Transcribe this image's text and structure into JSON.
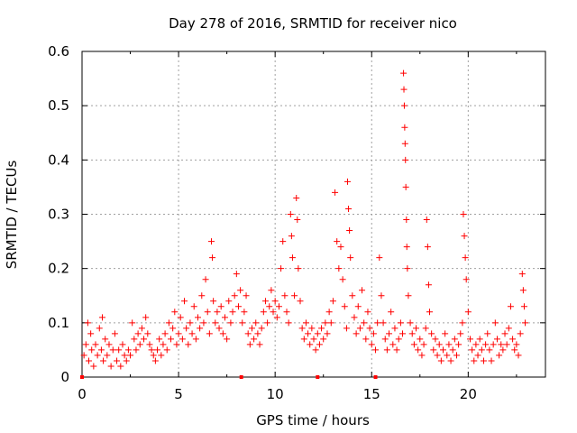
{
  "chart_data": {
    "type": "scatter",
    "title": "Day 278 of 2016, SRMTID for receiver nico",
    "xlabel": "GPS time / hours",
    "ylabel": "SRMTID / TECUs",
    "xlim": [
      0,
      24
    ],
    "ylim": [
      0,
      0.6
    ],
    "x_ticks": [
      0,
      5,
      10,
      15,
      20
    ],
    "y_ticks": [
      0,
      0.1,
      0.2,
      0.3,
      0.4,
      0.5,
      0.6
    ],
    "y_tick_labels": [
      "0",
      "0.1",
      "0.2",
      "0.3",
      "0.4",
      "0.5",
      "0.6"
    ],
    "grid": true,
    "marker": "+",
    "series": [
      {
        "name": "SRMTID",
        "color": "#ff0000",
        "points": [
          [
            0.1,
            0.04
          ],
          [
            0.2,
            0.06
          ],
          [
            0.3,
            0.1
          ],
          [
            0.35,
            0.03
          ],
          [
            0.45,
            0.08
          ],
          [
            0.5,
            0.05
          ],
          [
            0.6,
            0.02
          ],
          [
            0.7,
            0.06
          ],
          [
            0.8,
            0.04
          ],
          [
            0.9,
            0.09
          ],
          [
            1.0,
            0.05
          ],
          [
            1.05,
            0.11
          ],
          [
            1.1,
            0.03
          ],
          [
            1.2,
            0.07
          ],
          [
            1.3,
            0.04
          ],
          [
            1.4,
            0.06
          ],
          [
            1.5,
            0.02
          ],
          [
            1.6,
            0.05
          ],
          [
            1.7,
            0.08
          ],
          [
            1.8,
            0.03
          ],
          [
            1.9,
            0.05
          ],
          [
            2.0,
            0.02
          ],
          [
            2.1,
            0.06
          ],
          [
            2.2,
            0.04
          ],
          [
            2.3,
            0.03
          ],
          [
            2.4,
            0.05
          ],
          [
            2.5,
            0.04
          ],
          [
            2.6,
            0.1
          ],
          [
            2.7,
            0.07
          ],
          [
            2.8,
            0.05
          ],
          [
            2.9,
            0.08
          ],
          [
            3.0,
            0.06
          ],
          [
            3.1,
            0.09
          ],
          [
            3.2,
            0.07
          ],
          [
            3.3,
            0.11
          ],
          [
            3.4,
            0.08
          ],
          [
            3.5,
            0.06
          ],
          [
            3.6,
            0.05
          ],
          [
            3.7,
            0.04
          ],
          [
            3.8,
            0.03
          ],
          [
            3.9,
            0.05
          ],
          [
            4.0,
            0.07
          ],
          [
            4.1,
            0.04
          ],
          [
            4.2,
            0.06
          ],
          [
            4.3,
            0.08
          ],
          [
            4.4,
            0.05
          ],
          [
            4.5,
            0.1
          ],
          [
            4.6,
            0.07
          ],
          [
            4.7,
            0.09
          ],
          [
            4.8,
            0.12
          ],
          [
            4.9,
            0.06
          ],
          [
            5.0,
            0.08
          ],
          [
            5.1,
            0.11
          ],
          [
            5.2,
            0.07
          ],
          [
            5.3,
            0.14
          ],
          [
            5.4,
            0.09
          ],
          [
            5.5,
            0.06
          ],
          [
            5.6,
            0.1
          ],
          [
            5.7,
            0.08
          ],
          [
            5.8,
            0.13
          ],
          [
            5.9,
            0.07
          ],
          [
            6.0,
            0.11
          ],
          [
            6.1,
            0.09
          ],
          [
            6.2,
            0.15
          ],
          [
            6.3,
            0.1
          ],
          [
            6.4,
            0.18
          ],
          [
            6.5,
            0.12
          ],
          [
            6.6,
            0.08
          ],
          [
            6.7,
            0.25
          ],
          [
            6.75,
            0.22
          ],
          [
            6.8,
            0.14
          ],
          [
            6.9,
            0.1
          ],
          [
            7.0,
            0.12
          ],
          [
            7.1,
            0.09
          ],
          [
            7.2,
            0.13
          ],
          [
            7.3,
            0.08
          ],
          [
            7.4,
            0.11
          ],
          [
            7.5,
            0.07
          ],
          [
            7.6,
            0.14
          ],
          [
            7.7,
            0.1
          ],
          [
            7.8,
            0.12
          ],
          [
            7.9,
            0.15
          ],
          [
            8.0,
            0.19
          ],
          [
            8.1,
            0.13
          ],
          [
            8.2,
            0.16
          ],
          [
            8.3,
            0.1
          ],
          [
            8.4,
            0.12
          ],
          [
            8.5,
            0.15
          ],
          [
            8.6,
            0.08
          ],
          [
            8.7,
            0.06
          ],
          [
            8.8,
            0.09
          ],
          [
            8.9,
            0.07
          ],
          [
            9.0,
            0.1
          ],
          [
            9.1,
            0.08
          ],
          [
            9.2,
            0.06
          ],
          [
            9.3,
            0.09
          ],
          [
            9.4,
            0.12
          ],
          [
            9.5,
            0.14
          ],
          [
            9.6,
            0.1
          ],
          [
            9.7,
            0.13
          ],
          [
            9.8,
            0.16
          ],
          [
            9.9,
            0.12
          ],
          [
            10.0,
            0.14
          ],
          [
            10.1,
            0.11
          ],
          [
            10.2,
            0.13
          ],
          [
            10.3,
            0.2
          ],
          [
            10.4,
            0.25
          ],
          [
            10.5,
            0.15
          ],
          [
            10.6,
            0.12
          ],
          [
            10.7,
            0.1
          ],
          [
            10.8,
            0.3
          ],
          [
            10.85,
            0.26
          ],
          [
            10.9,
            0.22
          ],
          [
            11.0,
            0.15
          ],
          [
            11.1,
            0.33
          ],
          [
            11.15,
            0.29
          ],
          [
            11.2,
            0.2
          ],
          [
            11.3,
            0.14
          ],
          [
            11.4,
            0.09
          ],
          [
            11.5,
            0.07
          ],
          [
            11.6,
            0.1
          ],
          [
            11.7,
            0.08
          ],
          [
            11.8,
            0.06
          ],
          [
            11.9,
            0.09
          ],
          [
            12.0,
            0.07
          ],
          [
            12.1,
            0.05
          ],
          [
            12.2,
            0.08
          ],
          [
            12.3,
            0.06
          ],
          [
            12.4,
            0.09
          ],
          [
            12.5,
            0.07
          ],
          [
            12.6,
            0.1
          ],
          [
            12.7,
            0.08
          ],
          [
            12.8,
            0.12
          ],
          [
            12.9,
            0.1
          ],
          [
            13.0,
            0.14
          ],
          [
            13.1,
            0.34
          ],
          [
            13.2,
            0.25
          ],
          [
            13.3,
            0.2
          ],
          [
            13.4,
            0.24
          ],
          [
            13.5,
            0.18
          ],
          [
            13.6,
            0.13
          ],
          [
            13.7,
            0.09
          ],
          [
            13.75,
            0.36
          ],
          [
            13.8,
            0.31
          ],
          [
            13.85,
            0.27
          ],
          [
            13.9,
            0.22
          ],
          [
            14.0,
            0.15
          ],
          [
            14.1,
            0.11
          ],
          [
            14.2,
            0.08
          ],
          [
            14.3,
            0.13
          ],
          [
            14.4,
            0.09
          ],
          [
            14.5,
            0.16
          ],
          [
            14.6,
            0.1
          ],
          [
            14.7,
            0.07
          ],
          [
            14.8,
            0.12
          ],
          [
            14.9,
            0.09
          ],
          [
            15.0,
            0.06
          ],
          [
            15.1,
            0.08
          ],
          [
            15.2,
            0.05
          ],
          [
            15.3,
            0.1
          ],
          [
            15.4,
            0.22
          ],
          [
            15.5,
            0.15
          ],
          [
            15.6,
            0.1
          ],
          [
            15.7,
            0.07
          ],
          [
            15.8,
            0.05
          ],
          [
            15.9,
            0.08
          ],
          [
            16.0,
            0.12
          ],
          [
            16.1,
            0.06
          ],
          [
            16.2,
            0.09
          ],
          [
            16.3,
            0.05
          ],
          [
            16.4,
            0.07
          ],
          [
            16.5,
            0.1
          ],
          [
            16.6,
            0.08
          ],
          [
            16.65,
            0.56
          ],
          [
            16.67,
            0.53
          ],
          [
            16.69,
            0.5
          ],
          [
            16.71,
            0.46
          ],
          [
            16.73,
            0.43
          ],
          [
            16.75,
            0.4
          ],
          [
            16.77,
            0.35
          ],
          [
            16.8,
            0.29
          ],
          [
            16.82,
            0.24
          ],
          [
            16.85,
            0.2
          ],
          [
            16.9,
            0.15
          ],
          [
            17.0,
            0.1
          ],
          [
            17.1,
            0.08
          ],
          [
            17.2,
            0.06
          ],
          [
            17.3,
            0.09
          ],
          [
            17.4,
            0.05
          ],
          [
            17.5,
            0.07
          ],
          [
            17.6,
            0.04
          ],
          [
            17.7,
            0.06
          ],
          [
            17.8,
            0.09
          ],
          [
            17.85,
            0.29
          ],
          [
            17.9,
            0.24
          ],
          [
            17.95,
            0.17
          ],
          [
            18.0,
            0.12
          ],
          [
            18.1,
            0.08
          ],
          [
            18.2,
            0.05
          ],
          [
            18.3,
            0.07
          ],
          [
            18.4,
            0.04
          ],
          [
            18.5,
            0.06
          ],
          [
            18.6,
            0.03
          ],
          [
            18.7,
            0.05
          ],
          [
            18.8,
            0.08
          ],
          [
            18.9,
            0.04
          ],
          [
            19.0,
            0.06
          ],
          [
            19.1,
            0.03
          ],
          [
            19.2,
            0.05
          ],
          [
            19.3,
            0.07
          ],
          [
            19.4,
            0.04
          ],
          [
            19.5,
            0.06
          ],
          [
            19.6,
            0.08
          ],
          [
            19.7,
            0.1
          ],
          [
            19.75,
            0.3
          ],
          [
            19.8,
            0.26
          ],
          [
            19.85,
            0.22
          ],
          [
            19.9,
            0.18
          ],
          [
            20.0,
            0.12
          ],
          [
            20.1,
            0.07
          ],
          [
            20.2,
            0.05
          ],
          [
            20.3,
            0.03
          ],
          [
            20.4,
            0.06
          ],
          [
            20.5,
            0.04
          ],
          [
            20.6,
            0.07
          ],
          [
            20.7,
            0.05
          ],
          [
            20.8,
            0.03
          ],
          [
            20.9,
            0.06
          ],
          [
            21.0,
            0.08
          ],
          [
            21.1,
            0.05
          ],
          [
            21.2,
            0.03
          ],
          [
            21.3,
            0.06
          ],
          [
            21.4,
            0.1
          ],
          [
            21.5,
            0.07
          ],
          [
            21.6,
            0.04
          ],
          [
            21.7,
            0.06
          ],
          [
            21.8,
            0.05
          ],
          [
            21.9,
            0.08
          ],
          [
            22.0,
            0.06
          ],
          [
            22.1,
            0.09
          ],
          [
            22.2,
            0.13
          ],
          [
            22.3,
            0.07
          ],
          [
            22.4,
            0.05
          ],
          [
            22.5,
            0.06
          ],
          [
            22.6,
            0.04
          ],
          [
            22.7,
            0.08
          ],
          [
            22.8,
            0.19
          ],
          [
            22.85,
            0.16
          ],
          [
            22.9,
            0.13
          ],
          [
            22.95,
            0.1
          ]
        ]
      }
    ]
  }
}
